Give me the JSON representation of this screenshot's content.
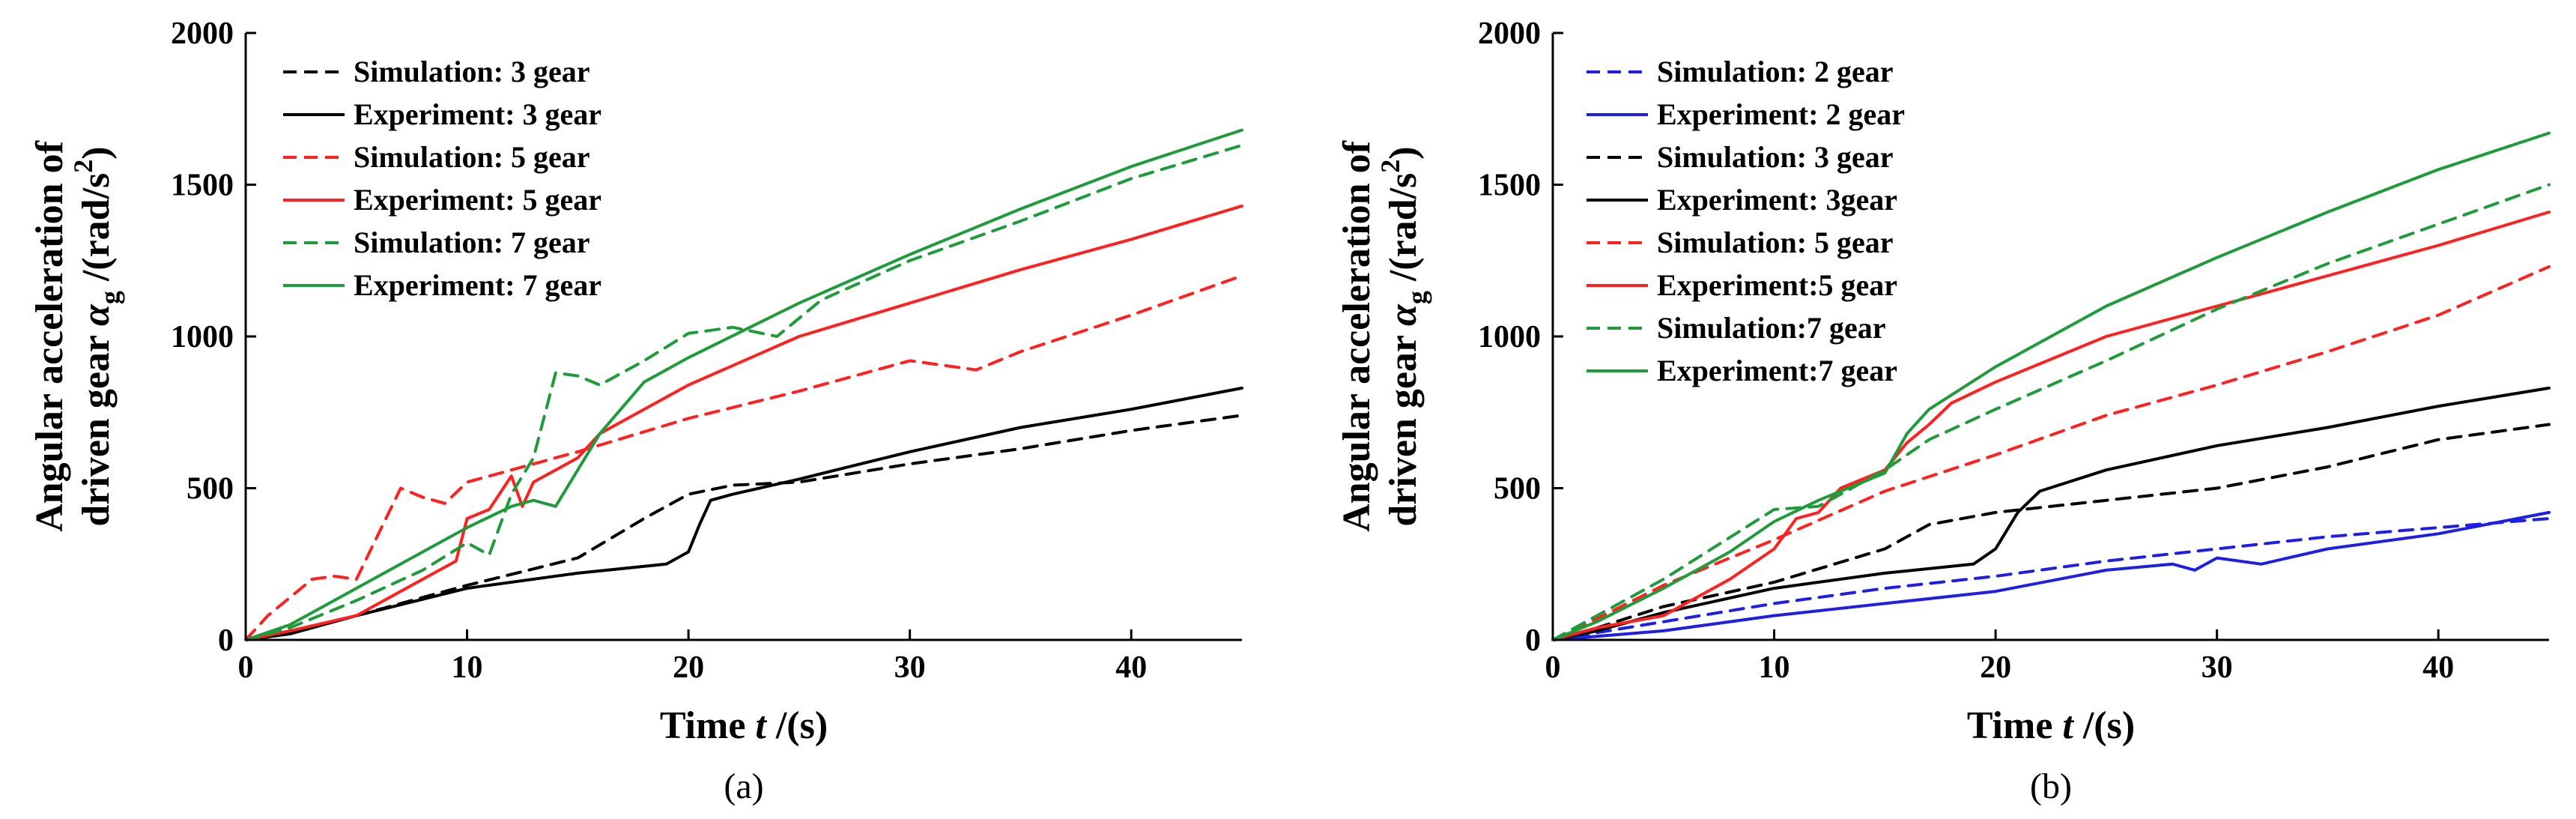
{
  "colors": {
    "black": "#000000",
    "red": "#ff2020",
    "green": "#1f9b3c",
    "blue": "#1e1ee6"
  },
  "chart_data": [
    {
      "type": "line",
      "panel_label": "(a)",
      "xlabel_prefix": "Time ",
      "xlabel_var": "t",
      "xlabel_unit": " /(s)",
      "ylabel_line1": "Angular acceleration of",
      "ylabel_line2_prefix": "driven gear ",
      "ylabel_symbol": "α",
      "ylabel_subscript": "g",
      "ylabel_unit_open": " /(rad/s",
      "ylabel_unit_power": "2",
      "ylabel_unit_close": ")",
      "xlim": [
        0,
        45
      ],
      "ylim": [
        0,
        2000
      ],
      "xticks": [
        0,
        10,
        20,
        30,
        40
      ],
      "xtick_labels": [
        "0",
        "10",
        "20",
        "30",
        "40"
      ],
      "yticks": [
        0,
        500,
        1000,
        1500,
        2000
      ],
      "ytick_labels": [
        "0",
        "500",
        "1000",
        "1500",
        "2000"
      ],
      "legend_position": "top-left",
      "series": [
        {
          "name": "Simulation: 3 gear",
          "color": "black",
          "dash": "dashed",
          "x": [
            0,
            1,
            5,
            10,
            15,
            18,
            20,
            22,
            25,
            30,
            35,
            40,
            45
          ],
          "y": [
            0,
            10,
            80,
            180,
            270,
            400,
            480,
            510,
            520,
            580,
            630,
            690,
            740
          ]
        },
        {
          "name": "Experiment: 3 gear",
          "color": "black",
          "dash": "solid",
          "x": [
            0,
            2,
            5,
            10,
            15,
            19,
            20,
            20.5,
            21,
            22,
            25,
            30,
            35,
            40,
            45
          ],
          "y": [
            0,
            20,
            80,
            170,
            220,
            250,
            290,
            380,
            460,
            480,
            530,
            620,
            700,
            760,
            830
          ]
        },
        {
          "name": "Simulation: 5 gear",
          "color": "red",
          "dash": "dashed",
          "x": [
            0,
            1,
            3,
            4,
            5,
            6,
            7,
            8,
            9,
            10,
            12,
            15,
            20,
            25,
            30,
            33,
            35,
            40,
            45
          ],
          "y": [
            0,
            80,
            200,
            210,
            200,
            350,
            500,
            470,
            450,
            520,
            560,
            620,
            730,
            820,
            920,
            890,
            950,
            1070,
            1200
          ]
        },
        {
          "name": "Experiment: 5 gear",
          "color": "red",
          "dash": "solid",
          "x": [
            0,
            2,
            5,
            8,
            9.5,
            10,
            11,
            12,
            12.5,
            13,
            14,
            15,
            16,
            18,
            20,
            25,
            30,
            35,
            40,
            45
          ],
          "y": [
            0,
            30,
            80,
            200,
            260,
            400,
            430,
            540,
            440,
            520,
            560,
            600,
            680,
            760,
            840,
            1000,
            1110,
            1220,
            1320,
            1430
          ]
        },
        {
          "name": "Simulation: 7 gear",
          "color": "green",
          "dash": "dashed",
          "x": [
            0,
            2,
            5,
            8,
            10,
            11,
            12,
            13,
            14,
            15,
            16,
            18,
            20,
            22,
            24,
            26,
            30,
            35,
            40,
            45
          ],
          "y": [
            0,
            40,
            130,
            230,
            320,
            280,
            480,
            600,
            880,
            870,
            840,
            920,
            1010,
            1030,
            1000,
            1120,
            1250,
            1380,
            1520,
            1630
          ]
        },
        {
          "name": "Experiment: 7 gear",
          "color": "green",
          "dash": "solid",
          "x": [
            0,
            2,
            5,
            8,
            10,
            12,
            13,
            14,
            15,
            16,
            18,
            20,
            25,
            30,
            35,
            40,
            45
          ],
          "y": [
            0,
            50,
            170,
            290,
            370,
            440,
            460,
            440,
            560,
            680,
            850,
            930,
            1110,
            1270,
            1420,
            1560,
            1680
          ]
        }
      ]
    },
    {
      "type": "line",
      "panel_label": "(b)",
      "xlabel_prefix": "Time ",
      "xlabel_var": "t",
      "xlabel_unit": " /(s)",
      "ylabel_line1": "Angular acceleration of",
      "ylabel_line2_prefix": "driven gear ",
      "ylabel_symbol": "α",
      "ylabel_subscript": "g",
      "ylabel_unit_open": " /(rad/s",
      "ylabel_unit_power": "2",
      "ylabel_unit_close": ")",
      "xlim": [
        0,
        45
      ],
      "ylim": [
        0,
        2000
      ],
      "xticks": [
        0,
        10,
        20,
        30,
        40
      ],
      "xtick_labels": [
        "0",
        "10",
        "20",
        "30",
        "40"
      ],
      "yticks": [
        0,
        500,
        1000,
        1500,
        2000
      ],
      "ytick_labels": [
        "0",
        "500",
        "1000",
        "1500",
        "2000"
      ],
      "legend_position": "top-left",
      "series": [
        {
          "name": "Simulation: 2 gear",
          "color": "blue",
          "dash": "dashed",
          "x": [
            0,
            5,
            10,
            15,
            20,
            25,
            30,
            35,
            40,
            45
          ],
          "y": [
            0,
            60,
            120,
            170,
            210,
            260,
            300,
            340,
            370,
            400
          ]
        },
        {
          "name": "Experiment: 2 gear",
          "color": "blue",
          "dash": "solid",
          "x": [
            0,
            5,
            10,
            15,
            20,
            25,
            28,
            29,
            30,
            32,
            35,
            38,
            40,
            45
          ],
          "y": [
            0,
            30,
            80,
            120,
            160,
            230,
            250,
            230,
            270,
            250,
            300,
            330,
            350,
            420
          ]
        },
        {
          "name": "Simulation: 3 gear",
          "color": "black",
          "dash": "dashed",
          "x": [
            0,
            2,
            5,
            10,
            15,
            17,
            20,
            25,
            30,
            35,
            40,
            45
          ],
          "y": [
            0,
            40,
            110,
            190,
            300,
            380,
            420,
            460,
            500,
            570,
            660,
            710
          ]
        },
        {
          "name": "Experiment: 3gear",
          "color": "black",
          "dash": "solid",
          "x": [
            0,
            2,
            5,
            10,
            15,
            19,
            20,
            21,
            22,
            25,
            30,
            35,
            40,
            45
          ],
          "y": [
            0,
            30,
            90,
            170,
            220,
            250,
            300,
            420,
            490,
            560,
            640,
            700,
            770,
            830
          ]
        },
        {
          "name": "Simulation: 5 gear",
          "color": "red",
          "dash": "dashed",
          "x": [
            0,
            2,
            5,
            10,
            15,
            20,
            25,
            30,
            35,
            40,
            45
          ],
          "y": [
            0,
            70,
            180,
            330,
            490,
            610,
            740,
            840,
            950,
            1070,
            1230
          ]
        },
        {
          "name": "Experiment:5 gear",
          "color": "red",
          "dash": "solid",
          "x": [
            0,
            2,
            5,
            8,
            10,
            11,
            12,
            13,
            15,
            16,
            17,
            18,
            20,
            25,
            30,
            35,
            40,
            45
          ],
          "y": [
            0,
            40,
            80,
            200,
            300,
            400,
            420,
            500,
            560,
            650,
            710,
            780,
            850,
            1000,
            1100,
            1200,
            1300,
            1410
          ]
        },
        {
          "name": "Simulation:7 gear",
          "color": "green",
          "dash": "dashed",
          "x": [
            0,
            2,
            5,
            10,
            12,
            15,
            17,
            20,
            25,
            30,
            35,
            40,
            45
          ],
          "y": [
            0,
            80,
            200,
            430,
            440,
            560,
            660,
            760,
            920,
            1090,
            1240,
            1370,
            1500
          ]
        },
        {
          "name": "Experiment:7 gear",
          "color": "green",
          "dash": "solid",
          "x": [
            0,
            2,
            5,
            8,
            10,
            12,
            15,
            16,
            17,
            20,
            25,
            30,
            35,
            40,
            45
          ],
          "y": [
            0,
            60,
            170,
            290,
            390,
            460,
            550,
            680,
            760,
            900,
            1100,
            1260,
            1410,
            1550,
            1670
          ]
        }
      ]
    }
  ]
}
